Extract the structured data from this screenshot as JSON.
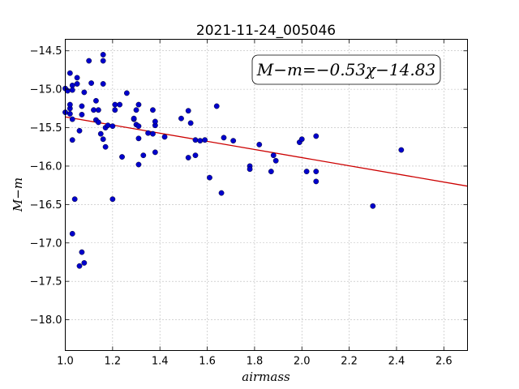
{
  "chart_data": {
    "type": "scatter",
    "title": "2021-11-24_005046",
    "xlabel": "airmass",
    "ylabel": "M−m",
    "xlim": [
      1.0,
      2.7
    ],
    "ylim": [
      -18.4,
      -14.35
    ],
    "y_inverted": true,
    "grid": true,
    "x_ticks": [
      1.0,
      1.2,
      1.4,
      1.6,
      1.8,
      2.0,
      2.2,
      2.4,
      2.6
    ],
    "x_tick_labels": [
      "1.0",
      "1.2",
      "1.4",
      "1.6",
      "1.8",
      "2.0",
      "2.2",
      "2.4",
      "2.6"
    ],
    "y_ticks": [
      -14.5,
      -15.0,
      -15.5,
      -16.0,
      -16.5,
      -17.0,
      -17.5,
      -18.0
    ],
    "y_tick_labels": [
      "−14.5",
      "−15.0",
      "−15.5",
      "−16.0",
      "−16.5",
      "−17.0",
      "−17.5",
      "−18.0"
    ],
    "annotation": "M−m=−0.53χ−14.83",
    "fit": {
      "slope": -0.53,
      "intercept": -14.83,
      "color": "#cc0000"
    },
    "point_color": "#0000cc",
    "points": [
      [
        1.0,
        -14.99
      ],
      [
        1.0,
        -15.3
      ],
      [
        1.01,
        -15.02
      ],
      [
        1.02,
        -15.25
      ],
      [
        1.02,
        -15.2
      ],
      [
        1.02,
        -15.32
      ],
      [
        1.02,
        -14.79
      ],
      [
        1.03,
        -14.95
      ],
      [
        1.03,
        -15.01
      ],
      [
        1.03,
        -15.39
      ],
      [
        1.03,
        -15.66
      ],
      [
        1.03,
        -16.88
      ],
      [
        1.04,
        -16.43
      ],
      [
        1.05,
        -14.85
      ],
      [
        1.05,
        -14.93
      ],
      [
        1.06,
        -15.54
      ],
      [
        1.06,
        -17.3
      ],
      [
        1.07,
        -15.22
      ],
      [
        1.07,
        -15.33
      ],
      [
        1.07,
        -17.12
      ],
      [
        1.08,
        -15.04
      ],
      [
        1.08,
        -17.26
      ],
      [
        1.1,
        -14.63
      ],
      [
        1.11,
        -14.92
      ],
      [
        1.12,
        -15.27
      ],
      [
        1.13,
        -15.4
      ],
      [
        1.13,
        -15.15
      ],
      [
        1.14,
        -15.27
      ],
      [
        1.14,
        -15.43
      ],
      [
        1.15,
        -15.58
      ],
      [
        1.16,
        -15.65
      ],
      [
        1.16,
        -14.55
      ],
      [
        1.16,
        -14.63
      ],
      [
        1.16,
        -14.93
      ],
      [
        1.17,
        -15.5
      ],
      [
        1.17,
        -15.75
      ],
      [
        1.18,
        -15.47
      ],
      [
        1.2,
        -16.43
      ],
      [
        1.2,
        -15.48
      ],
      [
        1.21,
        -15.27
      ],
      [
        1.21,
        -15.2
      ],
      [
        1.23,
        -15.2
      ],
      [
        1.24,
        -15.88
      ],
      [
        1.26,
        -15.05
      ],
      [
        1.29,
        -15.39
      ],
      [
        1.29,
        -15.38
      ],
      [
        1.3,
        -15.27
      ],
      [
        1.3,
        -15.46
      ],
      [
        1.31,
        -15.2
      ],
      [
        1.31,
        -15.48
      ],
      [
        1.31,
        -15.64
      ],
      [
        1.31,
        -15.98
      ],
      [
        1.33,
        -15.86
      ],
      [
        1.35,
        -15.57
      ],
      [
        1.37,
        -15.27
      ],
      [
        1.37,
        -15.58
      ],
      [
        1.38,
        -15.47
      ],
      [
        1.38,
        -15.42
      ],
      [
        1.38,
        -15.82
      ],
      [
        1.42,
        -15.62
      ],
      [
        1.49,
        -15.38
      ],
      [
        1.52,
        -15.28
      ],
      [
        1.52,
        -15.89
      ],
      [
        1.53,
        -15.44
      ],
      [
        1.55,
        -15.86
      ],
      [
        1.55,
        -15.66
      ],
      [
        1.57,
        -15.67
      ],
      [
        1.59,
        -15.66
      ],
      [
        1.61,
        -16.15
      ],
      [
        1.64,
        -15.22
      ],
      [
        1.66,
        -16.35
      ],
      [
        1.67,
        -15.63
      ],
      [
        1.71,
        -15.67
      ],
      [
        1.78,
        -16.0
      ],
      [
        1.78,
        -16.04
      ],
      [
        1.82,
        -15.72
      ],
      [
        1.87,
        -16.07
      ],
      [
        1.88,
        -15.86
      ],
      [
        1.89,
        -15.93
      ],
      [
        1.99,
        -15.69
      ],
      [
        2.0,
        -15.65
      ],
      [
        2.02,
        -16.07
      ],
      [
        2.06,
        -15.61
      ],
      [
        2.06,
        -16.07
      ],
      [
        2.06,
        -16.2
      ],
      [
        2.3,
        -16.52
      ],
      [
        2.42,
        -15.79
      ]
    ]
  }
}
